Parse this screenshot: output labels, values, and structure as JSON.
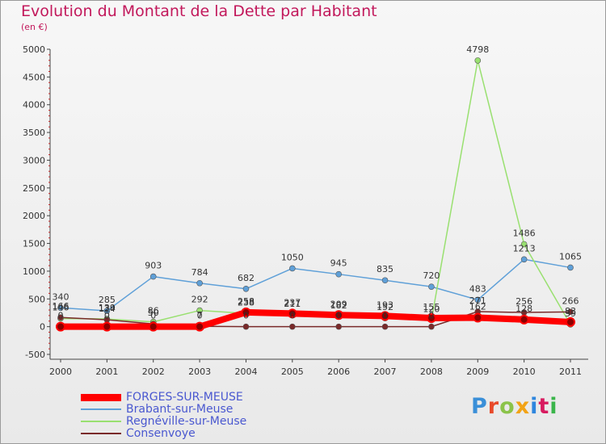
{
  "header": {
    "title": "Evolution du Montant de la Dette par Habitant",
    "subtitle": "(en €)"
  },
  "logo": {
    "text": "Proxiti",
    "colors": [
      "#3a8fd8",
      "#e84a2a",
      "#8bc34a",
      "#f2a316",
      "#2e86de",
      "#d81b60",
      "#3ab54a"
    ]
  },
  "chart_data": {
    "type": "line",
    "title": "Evolution du Montant de la Dette par Habitant",
    "subtitle": "(en €)",
    "x": [
      "2000",
      "2001",
      "2002",
      "2003",
      "2004",
      "2005",
      "2006",
      "2007",
      "2008",
      "2009",
      "2010",
      "2011"
    ],
    "ylim": [
      -500,
      5000
    ],
    "yticks": [
      -500,
      0,
      500,
      1000,
      1500,
      2000,
      2500,
      3000,
      3500,
      4000,
      4500,
      5000
    ],
    "grid": false,
    "legend_position": "bottom-left",
    "series": [
      {
        "name": "FORGES-SUR-MEUSE",
        "color": "#ff0000",
        "values": [
          0,
          0,
          0,
          0,
          258,
          237,
          209,
          193,
          155,
          162,
          128,
          83
        ],
        "labels": [
          "0",
          "0",
          "0",
          "0",
          "258",
          "237",
          "209",
          "193",
          "155",
          "162",
          "128",
          "83"
        ]
      },
      {
        "name": "Brabant-sur-Meuse",
        "color": "#5fa0d8",
        "values": [
          340,
          285,
          903,
          784,
          682,
          1050,
          945,
          835,
          720,
          483,
          1213,
          1065
        ],
        "labels": [
          "340",
          "285",
          "903",
          "784",
          "682",
          "1050",
          "945",
          "835",
          "720",
          "483",
          "1213",
          "1065"
        ]
      },
      {
        "name": "Regnéville-sur-Meuse",
        "color": "#99e070",
        "values": [
          146,
          139,
          86,
          292,
          238,
          211,
          182,
          152,
          120,
          4798,
          1486,
          39
        ],
        "labels": [
          "146",
          "139",
          "86",
          "292",
          "238",
          "211",
          "182",
          "152",
          "120",
          "4798",
          "1486",
          "39"
        ]
      },
      {
        "name": "Consenvoye",
        "color": "#7a2a2a",
        "values": [
          166,
          124,
          50,
          7,
          0,
          0,
          0,
          0,
          0,
          271,
          256,
          266
        ],
        "labels": [
          "166",
          "124",
          "50",
          "7",
          "0",
          "0",
          "0",
          "0",
          "0",
          "271",
          "256",
          "266"
        ]
      }
    ]
  }
}
